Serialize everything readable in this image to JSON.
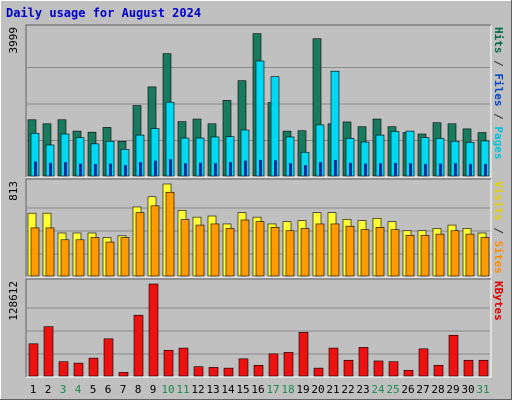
{
  "chart_data": {
    "type": "bar",
    "title": "Daily usage for August 2024",
    "categories": [
      "1",
      "2",
      "3",
      "4",
      "5",
      "6",
      "7",
      "8",
      "9",
      "10",
      "11",
      "12",
      "13",
      "14",
      "15",
      "16",
      "17",
      "18",
      "19",
      "20",
      "21",
      "22",
      "23",
      "24",
      "25",
      "26",
      "27",
      "28",
      "29",
      "30",
      "31"
    ],
    "weekend_days": [
      3,
      4,
      10,
      11,
      17,
      18,
      24,
      25,
      31
    ],
    "panels": [
      {
        "id": "hits",
        "max_label": "3999",
        "ymax": 3999,
        "legend": [
          {
            "text": "Pages",
            "color": "#00c4dc"
          },
          {
            "text": " / ",
            "color": "#303030"
          },
          {
            "text": "Files",
            "color": "#0044cc"
          },
          {
            "text": " / ",
            "color": "#303030"
          },
          {
            "text": "Hits",
            "color": "#006848"
          }
        ],
        "series": [
          {
            "name": "Hits",
            "color": "#1a7a5e",
            "values": [
              1540,
              1430,
              1540,
              1230,
              1200,
              1330,
              950,
              1930,
              2440,
              3350,
              1490,
              1560,
              1430,
              2070,
              2610,
              3900,
              2010,
              1230,
              1240,
              3760,
              1430,
              1480,
              1350,
              1560,
              1350,
              1190,
              1150,
              1460,
              1430,
              1290,
              1190
            ]
          },
          {
            "name": "Files",
            "color": "#00d8f4",
            "values": [
              1170,
              850,
              1150,
              1050,
              880,
              950,
              730,
              1120,
              1300,
              2020,
              1040,
              1040,
              1070,
              1080,
              1260,
              3150,
              2720,
              1070,
              650,
              1400,
              2870,
              1030,
              930,
              1120,
              1220,
              1230,
              1050,
              1030,
              950,
              920,
              960
            ]
          },
          {
            "name": "Pages",
            "color": "#0a2e9c",
            "values": [
              400,
              360,
              380,
              340,
              330,
              340,
              300,
              380,
              420,
              460,
              350,
              360,
              350,
              380,
              420,
              440,
              430,
              350,
              300,
              380,
              440,
              360,
              340,
              350,
              360,
              350,
              330,
              340,
              350,
              330,
              330
            ]
          }
        ]
      },
      {
        "id": "visits",
        "max_label": "813",
        "ymax": 813,
        "legend": [
          {
            "text": "Sites",
            "color": "#ff8c00"
          },
          {
            "text": " / ",
            "color": "#303030"
          },
          {
            "text": "Visits",
            "color": "#e8d000"
          }
        ],
        "series": [
          {
            "name": "Visits",
            "color": "#ffff33",
            "values": [
              555,
              555,
              380,
              380,
              380,
              340,
              355,
              610,
              700,
              813,
              580,
              520,
              530,
              460,
              560,
              520,
              460,
              480,
              490,
              560,
              560,
              500,
              490,
              510,
              480,
              400,
              400,
              420,
              450,
              420,
              380
            ]
          },
          {
            "name": "Sites",
            "color": "#ff9a00",
            "values": [
              425,
              425,
              320,
              320,
              340,
              300,
              340,
              560,
              620,
              740,
              500,
              450,
              460,
              420,
              495,
              480,
              430,
              400,
              420,
              460,
              460,
              440,
              410,
              430,
              410,
              360,
              360,
              370,
              400,
              370,
              340
            ]
          }
        ]
      },
      {
        "id": "kbytes",
        "max_label": "128612",
        "ymax": 128612,
        "legend": [
          {
            "text": "KBytes",
            "color": "#dd0000"
          }
        ],
        "series": [
          {
            "name": "KBytes",
            "color": "#ee1111",
            "values": [
              45000,
              69000,
              20000,
              18000,
              25000,
              52000,
              5000,
              85000,
              128612,
              36000,
              39000,
              13000,
              12000,
              11000,
              24000,
              15000,
              31000,
              33000,
              61000,
              11000,
              39000,
              22000,
              40000,
              21000,
              20000,
              8000,
              38000,
              15000,
              57000,
              22000,
              22000
            ]
          }
        ]
      }
    ]
  }
}
